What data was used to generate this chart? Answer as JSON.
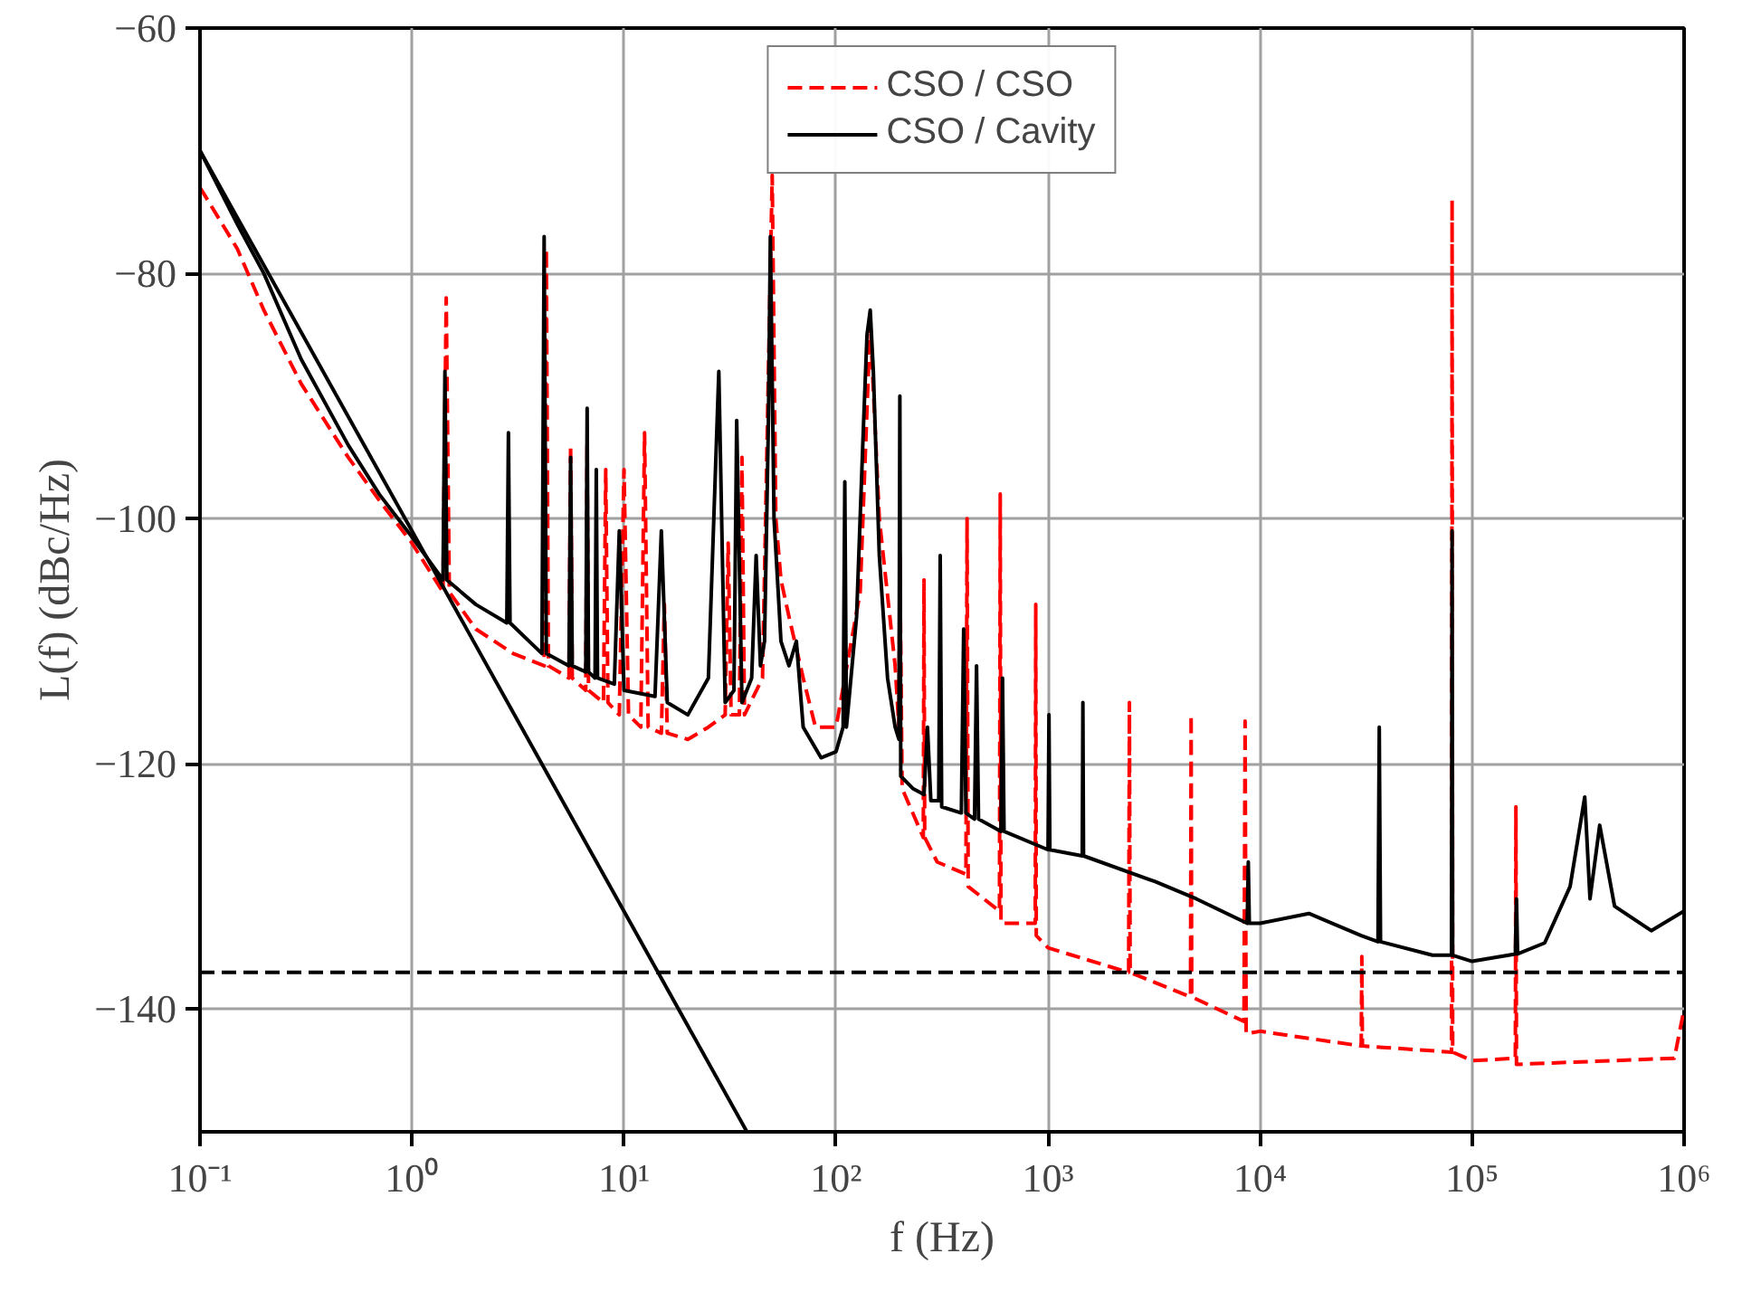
{
  "chart_data": {
    "type": "line",
    "xlabel": "f (Hz)",
    "ylabel": "L(f) (dBc/Hz)",
    "log": "x",
    "grid": true,
    "legend": "top",
    "xlim": [
      0.1,
      1000000
    ],
    "ylim": [
      -150,
      -60
    ],
    "xticks": [
      {
        "value": 0.1,
        "label": "10⁻¹"
      },
      {
        "value": 1,
        "label": "10⁰"
      },
      {
        "value": 10,
        "label": "10¹"
      },
      {
        "value": 100,
        "label": "10²"
      },
      {
        "value": 1000,
        "label": "10³"
      },
      {
        "value": 10000,
        "label": "10⁴"
      },
      {
        "value": 100000,
        "label": "10⁵"
      },
      {
        "value": 1000000,
        "label": "10⁶"
      }
    ],
    "yticks": [
      -140,
      -120,
      -100,
      -80,
      -60
    ],
    "ref_lines": [
      {
        "axis": "y",
        "value": -137,
        "label": null,
        "color": "#000000",
        "line_style": "dashed"
      }
    ],
    "series": [
      {
        "name": "CSO / CSO",
        "color": "#ff0000",
        "line_style": "dashed",
        "x": [
          0.1,
          0.15,
          0.2,
          0.3,
          0.5,
          0.7,
          1,
          1.4,
          1.45,
          1.5,
          2,
          3,
          4.2,
          4.3,
          4.4,
          5.5,
          5.6,
          5.7,
          6.6,
          6.7,
          6.8,
          8,
          8.2,
          8.4,
          9.5,
          10,
          10.5,
          12,
          12.5,
          13,
          15,
          15.5,
          16,
          20,
          25,
          30,
          31,
          32,
          35,
          36,
          37,
          45,
          50,
          52,
          55,
          60,
          70,
          80,
          100,
          130,
          145,
          160,
          190,
          198,
          200,
          205,
          230,
          258,
          260,
          262,
          300,
          410,
          415,
          420,
          590,
          595,
          600,
          870,
          875,
          880,
          1000,
          2400,
          2420,
          2440,
          4700,
          4730,
          4760,
          8400,
          8500,
          8600,
          10000,
          30000,
          30200,
          30400,
          80000,
          80500,
          81000,
          100000,
          160000,
          161000,
          162000,
          900000,
          1000000
        ],
        "values": [
          -73,
          -78,
          -83,
          -89,
          -95,
          -98.5,
          -102,
          -106,
          -82,
          -106,
          -109,
          -111,
          -112,
          -78,
          -112,
          -113,
          -94,
          -113,
          -114,
          -94,
          -114,
          -115,
          -96,
          -115,
          -116,
          -96,
          -116,
          -117,
          -93,
          -117,
          -117.5,
          -107,
          -117.5,
          -118,
          -117,
          -116,
          -102,
          -116,
          -116,
          -95,
          -116,
          -113,
          -72,
          -100,
          -105,
          -108,
          -113,
          -117,
          -117,
          -106,
          -84,
          -100,
          -112,
          -117,
          -103,
          -122,
          -124,
          -126,
          -105,
          -126,
          -128,
          -129,
          -100,
          -130,
          -132,
          -98,
          -133,
          -133,
          -107,
          -134,
          -135,
          -137,
          -115,
          -137,
          -139,
          -116,
          -139,
          -141,
          -116.5,
          -142,
          -141.8,
          -143,
          -135.7,
          -143,
          -143.5,
          -74,
          -143.5,
          -144.2,
          -144,
          -123.5,
          -144.5,
          -144,
          -140
        ]
      },
      {
        "name": "CSO / Cavity",
        "color": "#000000",
        "line_style": "solid",
        "x": [
          0.1,
          0.15,
          0.2,
          0.3,
          0.5,
          0.7,
          1,
          1.4,
          1.43,
          1.46,
          2,
          2.8,
          2.85,
          2.9,
          4.1,
          4.2,
          4.3,
          5.5,
          5.6,
          5.7,
          6.6,
          6.7,
          6.8,
          7.3,
          7.4,
          7.5,
          9,
          9.5,
          10,
          14,
          15,
          16,
          20,
          25,
          28,
          30,
          33,
          34,
          36,
          40,
          42,
          44,
          46,
          48,
          49,
          51,
          55,
          60,
          65,
          70,
          85,
          100,
          108,
          110,
          112,
          125,
          135,
          140,
          145,
          150,
          160,
          175,
          190,
          198,
          200,
          202,
          230,
          260,
          270,
          280,
          305,
          310,
          315,
          390,
          400,
          410,
          450,
          460,
          470,
          600,
          610,
          620,
          1000,
          1010,
          1020,
          1450,
          1460,
          1470,
          3200,
          5000,
          8700,
          8800,
          8900,
          10000,
          17000,
          30000,
          36000,
          36500,
          37000,
          65000,
          80000,
          80500,
          81000,
          100000,
          160000,
          162000,
          164000,
          220000,
          290000,
          340000,
          360000,
          400000,
          470000,
          700000,
          1000000
        ],
        "values": [
          -70,
          -76,
          -80,
          -87,
          -94,
          -98,
          -101.5,
          -105,
          -88,
          -105,
          -107,
          -108.5,
          -93,
          -108.5,
          -111,
          -77,
          -111,
          -112,
          -95,
          -112,
          -112.5,
          -91,
          -112.5,
          -113,
          -96,
          -113,
          -113.5,
          -101,
          -114,
          -114.5,
          -101,
          -115,
          -116,
          -113,
          -88,
          -115,
          -114,
          -92,
          -115,
          -113,
          -103,
          -112,
          -110,
          -92,
          -77,
          -100,
          -110,
          -112,
          -110,
          -117,
          -119.5,
          -119,
          -117,
          -97,
          -117,
          -108,
          -92,
          -85,
          -83,
          -88,
          -103,
          -113,
          -117,
          -118,
          -90,
          -121,
          -122,
          -122.5,
          -117,
          -123,
          -123,
          -103,
          -123.5,
          -124,
          -109,
          -124,
          -124.5,
          -112,
          -124.5,
          -125.5,
          -113,
          -125.5,
          -127,
          -116,
          -127,
          -127.5,
          -115,
          -127.5,
          -129.6,
          -131,
          -133,
          -128,
          -133,
          -133,
          -132.2,
          -134,
          -134.5,
          -117,
          -134.5,
          -135.6,
          -135.6,
          -101,
          -135.6,
          -136.1,
          -135.5,
          -131,
          -135.5,
          -134.6,
          -130,
          -122.7,
          -131,
          -125,
          -131.6,
          -133.6,
          -132
        ]
      },
      {
        "color": "#000000",
        "line_style": "solid",
        "x": [
          0.1,
          38
        ],
        "values": [
          -70,
          -150
        ]
      }
    ]
  }
}
